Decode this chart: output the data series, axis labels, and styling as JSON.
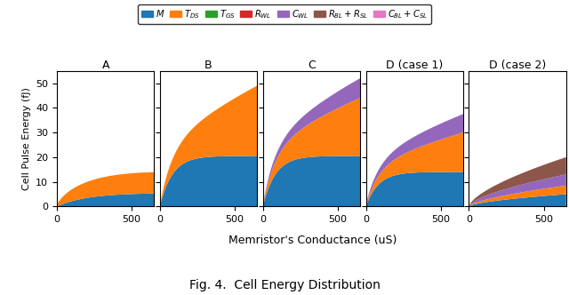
{
  "colors": {
    "M": "#1f77b4",
    "T_DS": "#ff7f0e",
    "T_GS": "#2ca02c",
    "R_WL": "#d62728",
    "C_WL": "#9467bd",
    "R_BL_R_SL": "#8c564b",
    "C_BL_C_SL": "#e377c2"
  },
  "subplot_titles": [
    "A",
    "B",
    "C",
    "D (case 1)",
    "D (case 2)"
  ],
  "xlabel": "Memristor's Conductance (uS)",
  "ylabel": "Cell Pulse Energy (fJ)",
  "caption": "Fig. 4.  Cell Energy Distribution",
  "x_max": 650,
  "ylim": [
    0,
    55
  ],
  "charts": {
    "A": {
      "M": {
        "type": "sat",
        "scale": 5.5,
        "rate": 0.005
      },
      "T_DS": {
        "type": "concave",
        "scale": 14.5,
        "power": 0.55,
        "exp_rate": 0.0008
      },
      "C_WL": null,
      "R_BL_R_SL": null,
      "C_BL_C_SL": null
    },
    "B": {
      "M": {
        "type": "sat",
        "scale": 20.5,
        "rate": 0.012
      },
      "T_DS": {
        "type": "power",
        "scale": 28.5,
        "power": 0.75
      },
      "C_WL": null,
      "R_BL_R_SL": null,
      "C_BL_C_SL": null
    },
    "C": {
      "M": {
        "type": "sat",
        "scale": 20.5,
        "rate": 0.012
      },
      "T_DS": {
        "type": "power",
        "scale": 23.5,
        "power": 0.75
      },
      "C_WL": {
        "type": "power",
        "scale": 8.0,
        "power": 0.6
      },
      "R_BL_R_SL": null,
      "C_BL_C_SL": null
    },
    "D1": {
      "M": {
        "type": "sat",
        "scale": 14.0,
        "rate": 0.012
      },
      "T_DS": {
        "type": "power",
        "scale": 16.0,
        "power": 0.75
      },
      "C_WL": {
        "type": "power",
        "scale": 7.5,
        "power": 0.55
      },
      "R_BL_R_SL": null,
      "C_BL_C_SL": null
    },
    "D2": {
      "M": {
        "type": "power",
        "scale": 5.0,
        "power": 0.6
      },
      "T_DS": {
        "type": "power",
        "scale": 3.5,
        "power": 0.7
      },
      "C_WL": {
        "type": "power",
        "scale": 4.5,
        "power": 0.6
      },
      "R_BL_R_SL": {
        "type": "power",
        "scale": 7.0,
        "power": 0.7
      },
      "C_BL_C_SL": null
    }
  }
}
